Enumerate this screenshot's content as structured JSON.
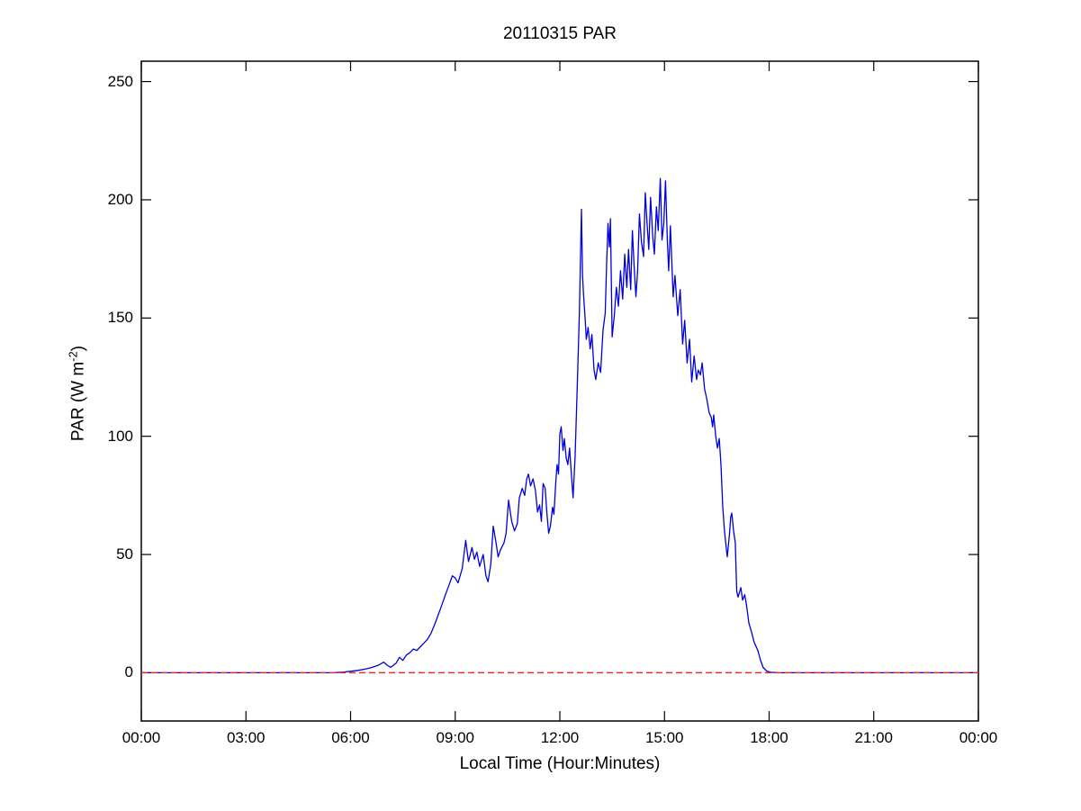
{
  "chart_data": {
    "type": "line",
    "title": "20110315 PAR",
    "xlabel": "Local Time (Hour:Minutes)",
    "ylabel": "PAR (W m-2)",
    "ylabel_parts": {
      "prefix": "PAR (W m",
      "superscript": "-2",
      "suffix": ")"
    },
    "xlim": [
      0,
      24
    ],
    "ylim": [
      -20.4,
      258.6
    ],
    "grid": false,
    "legend": "none",
    "axis_color": "#000000",
    "background_color": "#ffffff",
    "x_ticks": [
      {
        "value": 0,
        "label": "00:00"
      },
      {
        "value": 3,
        "label": "03:00"
      },
      {
        "value": 6,
        "label": "06:00"
      },
      {
        "value": 9,
        "label": "09:00"
      },
      {
        "value": 12,
        "label": "12:00"
      },
      {
        "value": 15,
        "label": "15:00"
      },
      {
        "value": 18,
        "label": "18:00"
      },
      {
        "value": 21,
        "label": "21:00"
      },
      {
        "value": 24,
        "label": "00:00"
      }
    ],
    "y_ticks": [
      {
        "value": 0,
        "label": "0"
      },
      {
        "value": 50,
        "label": "50"
      },
      {
        "value": 100,
        "label": "100"
      },
      {
        "value": 150,
        "label": "150"
      },
      {
        "value": 200,
        "label": "200"
      },
      {
        "value": 250,
        "label": "250"
      }
    ],
    "series": [
      {
        "name": "par",
        "color": "#0000dd",
        "style": "solid",
        "width": 1.3,
        "points": [
          [
            0,
            0
          ],
          [
            0.5,
            0
          ],
          [
            1,
            0
          ],
          [
            1.5,
            0
          ],
          [
            2,
            0
          ],
          [
            2.5,
            0
          ],
          [
            3,
            0
          ],
          [
            3.5,
            0
          ],
          [
            4,
            0
          ],
          [
            4.5,
            0
          ],
          [
            5,
            0
          ],
          [
            5.5,
            0
          ],
          [
            5.8,
            0.3
          ],
          [
            6.0,
            0.6
          ],
          [
            6.2,
            1
          ],
          [
            6.4,
            1.5
          ],
          [
            6.6,
            2.2
          ],
          [
            6.8,
            3.2
          ],
          [
            6.95,
            4.5
          ],
          [
            7.05,
            3.2
          ],
          [
            7.15,
            2.3
          ],
          [
            7.3,
            4
          ],
          [
            7.4,
            6.5
          ],
          [
            7.5,
            5.2
          ],
          [
            7.6,
            7.5
          ],
          [
            7.7,
            8.5
          ],
          [
            7.8,
            10
          ],
          [
            7.9,
            9.4
          ],
          [
            8.0,
            11
          ],
          [
            8.1,
            12.5
          ],
          [
            8.2,
            14
          ],
          [
            8.3,
            16.5
          ],
          [
            8.4,
            20
          ],
          [
            8.5,
            24
          ],
          [
            8.6,
            28
          ],
          [
            8.72,
            33
          ],
          [
            8.82,
            37
          ],
          [
            8.92,
            41
          ],
          [
            9.0,
            40
          ],
          [
            9.08,
            38
          ],
          [
            9.2,
            44
          ],
          [
            9.3,
            56
          ],
          [
            9.38,
            47
          ],
          [
            9.48,
            53
          ],
          [
            9.55,
            48
          ],
          [
            9.62,
            51
          ],
          [
            9.7,
            45
          ],
          [
            9.8,
            50
          ],
          [
            9.88,
            41
          ],
          [
            9.94,
            38.5
          ],
          [
            10.02,
            46
          ],
          [
            10.09,
            62
          ],
          [
            10.17,
            55
          ],
          [
            10.23,
            49
          ],
          [
            10.3,
            52
          ],
          [
            10.4,
            55
          ],
          [
            10.46,
            59
          ],
          [
            10.53,
            73
          ],
          [
            10.62,
            64
          ],
          [
            10.7,
            60
          ],
          [
            10.78,
            63
          ],
          [
            10.84,
            74
          ],
          [
            10.92,
            78
          ],
          [
            10.99,
            75
          ],
          [
            11.05,
            82
          ],
          [
            11.1,
            84
          ],
          [
            11.16,
            79
          ],
          [
            11.23,
            82
          ],
          [
            11.3,
            77
          ],
          [
            11.36,
            68
          ],
          [
            11.42,
            71
          ],
          [
            11.47,
            64
          ],
          [
            11.52,
            80
          ],
          [
            11.58,
            78
          ],
          [
            11.63,
            67
          ],
          [
            11.68,
            59
          ],
          [
            11.73,
            62
          ],
          [
            11.79,
            70
          ],
          [
            11.83,
            67
          ],
          [
            11.88,
            80
          ],
          [
            11.92,
            88
          ],
          [
            11.96,
            84
          ],
          [
            12.0,
            101
          ],
          [
            12.04,
            104
          ],
          [
            12.09,
            94
          ],
          [
            12.13,
            99
          ],
          [
            12.18,
            91
          ],
          [
            12.23,
            88
          ],
          [
            12.28,
            95
          ],
          [
            12.33,
            84
          ],
          [
            12.38,
            74
          ],
          [
            12.44,
            92
          ],
          [
            12.5,
            122
          ],
          [
            12.56,
            152
          ],
          [
            12.62,
            196
          ],
          [
            12.65,
            168
          ],
          [
            12.68,
            160
          ],
          [
            12.72,
            151
          ],
          [
            12.76,
            141
          ],
          [
            12.81,
            146
          ],
          [
            12.87,
            137
          ],
          [
            12.92,
            143
          ],
          [
            12.98,
            128
          ],
          [
            13.03,
            124
          ],
          [
            13.1,
            131
          ],
          [
            13.17,
            127
          ],
          [
            13.24,
            145
          ],
          [
            13.3,
            152
          ],
          [
            13.34,
            172
          ],
          [
            13.38,
            190
          ],
          [
            13.42,
            180
          ],
          [
            13.45,
            192
          ],
          [
            13.5,
            142
          ],
          [
            13.56,
            151
          ],
          [
            13.62,
            163
          ],
          [
            13.68,
            155
          ],
          [
            13.74,
            170
          ],
          [
            13.8,
            158
          ],
          [
            13.86,
            177
          ],
          [
            13.92,
            163
          ],
          [
            13.97,
            179
          ],
          [
            14.03,
            162
          ],
          [
            14.08,
            187
          ],
          [
            14.13,
            172
          ],
          [
            14.18,
            159
          ],
          [
            14.23,
            170
          ],
          [
            14.28,
            194
          ],
          [
            14.34,
            182
          ],
          [
            14.4,
            176
          ],
          [
            14.45,
            203
          ],
          [
            14.5,
            190
          ],
          [
            14.55,
            179
          ],
          [
            14.6,
            201
          ],
          [
            14.66,
            185
          ],
          [
            14.71,
            177
          ],
          [
            14.77,
            197
          ],
          [
            14.82,
            187
          ],
          [
            14.88,
            209
          ],
          [
            14.93,
            183
          ],
          [
            14.98,
            190
          ],
          [
            15.03,
            208
          ],
          [
            15.08,
            183
          ],
          [
            15.12,
            170
          ],
          [
            15.17,
            189
          ],
          [
            15.25,
            159
          ],
          [
            15.3,
            168
          ],
          [
            15.38,
            151
          ],
          [
            15.45,
            162
          ],
          [
            15.52,
            139
          ],
          [
            15.58,
            149
          ],
          [
            15.65,
            131
          ],
          [
            15.72,
            141
          ],
          [
            15.78,
            123
          ],
          [
            15.85,
            134
          ],
          [
            15.92,
            124
          ],
          [
            15.97,
            128
          ],
          [
            16.03,
            126
          ],
          [
            16.08,
            131
          ],
          [
            16.15,
            120
          ],
          [
            16.21,
            116
          ],
          [
            16.28,
            110
          ],
          [
            16.34,
            108
          ],
          [
            16.38,
            104
          ],
          [
            16.41,
            109
          ],
          [
            16.47,
            100
          ],
          [
            16.52,
            95
          ],
          [
            16.57,
            99
          ],
          [
            16.62,
            88
          ],
          [
            16.67,
            70
          ],
          [
            16.72,
            60
          ],
          [
            16.77,
            53
          ],
          [
            16.8,
            49
          ],
          [
            16.86,
            58
          ],
          [
            16.9,
            66
          ],
          [
            16.93,
            67.5
          ],
          [
            16.98,
            60
          ],
          [
            17.03,
            55
          ],
          [
            17.07,
            34.5
          ],
          [
            17.11,
            32
          ],
          [
            17.19,
            36
          ],
          [
            17.24,
            30.7
          ],
          [
            17.3,
            33
          ],
          [
            17.35,
            28.8
          ],
          [
            17.42,
            21
          ],
          [
            17.5,
            17
          ],
          [
            17.57,
            13
          ],
          [
            17.68,
            9.3
          ],
          [
            17.75,
            5.5
          ],
          [
            17.83,
            2.2
          ],
          [
            17.94,
            0.6
          ],
          [
            18.06,
            0.2
          ],
          [
            18.25,
            0.05
          ],
          [
            18.5,
            0
          ],
          [
            19,
            0
          ],
          [
            19.5,
            0
          ],
          [
            20,
            0
          ],
          [
            20.5,
            0
          ],
          [
            21,
            0
          ],
          [
            21.5,
            0
          ],
          [
            22,
            0
          ],
          [
            22.5,
            0
          ],
          [
            23,
            0
          ],
          [
            23.5,
            0
          ],
          [
            24,
            0
          ]
        ]
      },
      {
        "name": "zero-reference",
        "color": "#e03030",
        "style": "dashed",
        "width": 1.5,
        "points": [
          [
            0,
            0
          ],
          [
            24,
            0
          ]
        ]
      }
    ]
  }
}
